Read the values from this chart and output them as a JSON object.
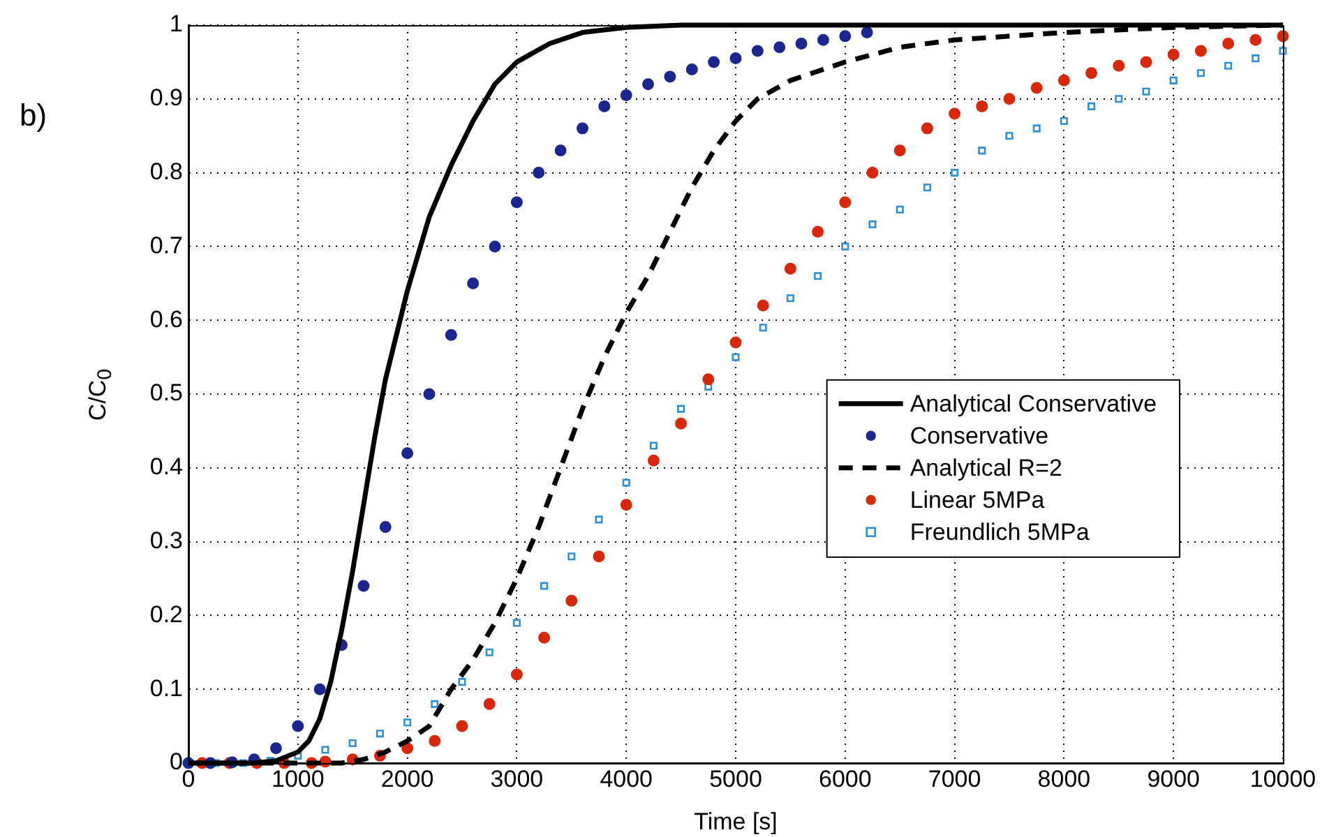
{
  "chart_data": {
    "type": "line",
    "xlabel": "Time [s]",
    "ylabel": "C/C$_{0}$",
    "annotations": [
      "b)"
    ],
    "xlim": [
      0,
      10000
    ],
    "xticks": [
      0,
      1000,
      2000,
      3000,
      4000,
      5000,
      6000,
      7000,
      8000,
      9000,
      10000
    ],
    "ylim": [
      0,
      1
    ],
    "yticks": [
      0,
      0.1,
      0.2,
      0.3,
      0.4,
      0.5,
      0.6,
      0.7,
      0.8,
      0.9,
      1
    ],
    "grid": true,
    "legend": "right",
    "series": [
      {
        "name": "Analytical Conservative",
        "color": "#000000",
        "line_style": "solid",
        "marker": "none",
        "x": [
          0,
          600,
          800,
          1000,
          1100,
          1200,
          1300,
          1400,
          1500,
          1600,
          1700,
          1800,
          1900,
          2000,
          2200,
          2400,
          2600,
          2800,
          3000,
          3300,
          3600,
          4000,
          4500,
          10000
        ],
        "values": [
          0,
          0,
          0.003,
          0.015,
          0.03,
          0.06,
          0.11,
          0.18,
          0.26,
          0.35,
          0.44,
          0.52,
          0.58,
          0.64,
          0.74,
          0.81,
          0.87,
          0.92,
          0.95,
          0.975,
          0.99,
          0.997,
          1,
          1
        ]
      },
      {
        "name": "Conservative",
        "type": "scatter",
        "color": "#1c2690",
        "marker": "circle",
        "x": [
          0,
          200,
          400,
          600,
          800,
          1000,
          1200,
          1400,
          1600,
          1800,
          2000,
          2200,
          2400,
          2600,
          2800,
          3000,
          3200,
          3400,
          3600,
          3800,
          4000,
          4200,
          4400,
          4600,
          4800,
          5000,
          5200,
          5400,
          5600,
          5800,
          6000,
          6200
        ],
        "values": [
          0,
          0,
          0.001,
          0.005,
          0.02,
          0.05,
          0.1,
          0.16,
          0.24,
          0.32,
          0.42,
          0.5,
          0.58,
          0.65,
          0.7,
          0.76,
          0.8,
          0.83,
          0.86,
          0.89,
          0.905,
          0.92,
          0.93,
          0.94,
          0.95,
          0.955,
          0.965,
          0.97,
          0.975,
          0.98,
          0.985,
          0.99
        ]
      },
      {
        "name": "Analytical R=2",
        "color": "#000000",
        "line_style": "dashed",
        "marker": "none",
        "x": [
          0,
          1400,
          1600,
          1800,
          2000,
          2200,
          2400,
          2600,
          2800,
          3000,
          3200,
          3400,
          3600,
          3800,
          4000,
          4200,
          4400,
          4600,
          4800,
          5000,
          5200,
          5500,
          6000,
          6500,
          7000,
          8000,
          9000,
          10000
        ],
        "values": [
          0,
          0,
          0.005,
          0.015,
          0.03,
          0.05,
          0.1,
          0.14,
          0.19,
          0.25,
          0.32,
          0.4,
          0.48,
          0.55,
          0.61,
          0.66,
          0.72,
          0.78,
          0.83,
          0.87,
          0.9,
          0.925,
          0.95,
          0.97,
          0.98,
          0.99,
          0.997,
          1
        ]
      },
      {
        "name": "Linear 5MPa",
        "type": "scatter",
        "color": "#d8280c",
        "marker": "circle",
        "x": [
          125,
          375,
          625,
          875,
          1125,
          1250,
          1500,
          1750,
          2000,
          2250,
          2500,
          2750,
          3000,
          3250,
          3500,
          3750,
          4000,
          4250,
          4500,
          4750,
          5000,
          5250,
          5500,
          5750,
          6000,
          6250,
          6500,
          6750,
          7000,
          7250,
          7500,
          7750,
          8000,
          8250,
          8500,
          8750,
          9000,
          9250,
          9500,
          9750,
          10000
        ],
        "values": [
          0,
          0,
          0,
          0,
          0,
          0.002,
          0.005,
          0.01,
          0.02,
          0.03,
          0.05,
          0.08,
          0.12,
          0.17,
          0.22,
          0.28,
          0.35,
          0.41,
          0.46,
          0.52,
          0.57,
          0.62,
          0.67,
          0.72,
          0.76,
          0.8,
          0.83,
          0.86,
          0.88,
          0.89,
          0.9,
          0.915,
          0.925,
          0.935,
          0.945,
          0.95,
          0.96,
          0.965,
          0.975,
          0.98,
          0.985
        ]
      },
      {
        "name": "Freundlich 5MPa",
        "type": "scatter",
        "color": "#2e8fd6",
        "marker": "square",
        "x": [
          250,
          500,
          750,
          1000,
          1250,
          1500,
          1750,
          2000,
          2250,
          2500,
          2750,
          3000,
          3250,
          3500,
          3750,
          4000,
          4250,
          4500,
          4750,
          5000,
          5250,
          5500,
          5750,
          6000,
          6250,
          6500,
          6750,
          7000,
          7250,
          7500,
          7750,
          8000,
          8250,
          8500,
          8750,
          9000,
          9250,
          9500,
          9750,
          10000
        ],
        "values": [
          0,
          0,
          0.003,
          0.01,
          0.018,
          0.027,
          0.04,
          0.055,
          0.08,
          0.11,
          0.15,
          0.19,
          0.24,
          0.28,
          0.33,
          0.38,
          0.43,
          0.48,
          0.51,
          0.55,
          0.59,
          0.63,
          0.66,
          0.7,
          0.73,
          0.75,
          0.78,
          0.8,
          0.83,
          0.85,
          0.86,
          0.87,
          0.89,
          0.9,
          0.91,
          0.925,
          0.935,
          0.945,
          0.955,
          0.965
        ]
      }
    ]
  }
}
